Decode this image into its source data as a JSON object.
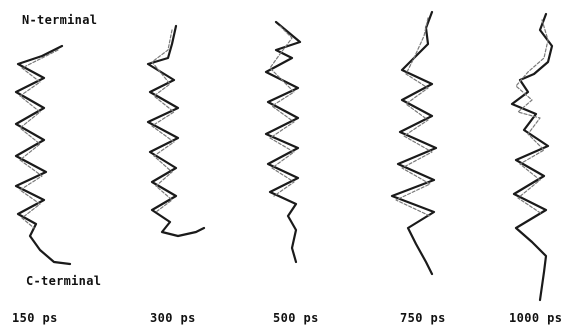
{
  "figure": {
    "n_terminal_label": "N-terminal",
    "c_terminal_label": "C-terminal",
    "snapshots": [
      {
        "time_label": "150 ps",
        "icon": "helix-backbone-trace"
      },
      {
        "time_label": "300 ps",
        "icon": "helix-backbone-trace"
      },
      {
        "time_label": "500 ps",
        "icon": "helix-backbone-trace"
      },
      {
        "time_label": "750 ps",
        "icon": "helix-backbone-trace"
      },
      {
        "time_label": "1000 ps",
        "icon": "helix-backbone-trace"
      }
    ],
    "colors": {
      "background": "#ffffff",
      "trace": "#1a1a1a",
      "shading": "#7a7a7a"
    }
  }
}
